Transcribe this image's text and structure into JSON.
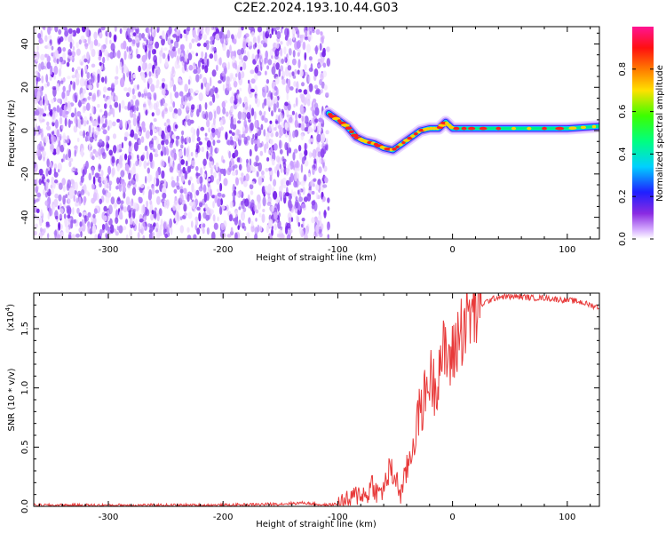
{
  "title": "C2E2.2024.193.10.44.G03",
  "colors": {
    "snr_line": "#e83a3a",
    "axis": "#000000",
    "background": "#ffffff"
  },
  "chart_data": [
    {
      "type": "heatmap",
      "name": "dynamic-spectrum",
      "xlabel": "Height of straight line (km)",
      "ylabel": "Frequency (Hz)",
      "xlim": [
        -365,
        128
      ],
      "ylim": [
        -50,
        48
      ],
      "xticks": [
        -300,
        -200,
        -100,
        0,
        100
      ],
      "yticks": [
        -40,
        -20,
        0,
        20,
        40
      ],
      "noise_region_x": [
        -365,
        -108
      ],
      "track": {
        "x": [
          -108,
          -100,
          -92,
          -84,
          -76,
          -68,
          -60,
          -52,
          -44,
          -36,
          -28,
          -20,
          -12,
          -6,
          0,
          20,
          60,
          100,
          128
        ],
        "y": [
          8,
          5,
          2,
          -3,
          -5,
          -6,
          -8,
          -9,
          -6,
          -3,
          0,
          1,
          1,
          4,
          1,
          1,
          1,
          1,
          2
        ]
      }
    },
    {
      "type": "colorbar",
      "name": "amplitude-colorbar",
      "label": "Normalized spectral amplitude",
      "range": [
        0,
        1
      ],
      "ticks": [
        "0.0",
        "0.2",
        "0.4",
        "0.6",
        "0.8"
      ]
    },
    {
      "type": "line",
      "name": "snr-line",
      "xlabel": "Height of straight line (km)",
      "ylabel": "SNR (10 * v/v)",
      "scale_label": "(x10",
      "scale_exp": "4",
      "scale_close": ")",
      "xlim": [
        -365,
        128
      ],
      "ylim": [
        0,
        1.8
      ],
      "xticks": [
        -300,
        -200,
        -100,
        0,
        100
      ],
      "yticks": [
        "0.0",
        "0.5",
        "1.0",
        "1.5"
      ],
      "series": [
        {
          "name": "SNR",
          "x": [
            -365,
            -300,
            -200,
            -150,
            -130,
            -110,
            -100,
            -90,
            -80,
            -75,
            -70,
            -65,
            -60,
            -55,
            -50,
            -45,
            -40,
            -35,
            -30,
            -25,
            -20,
            -15,
            -10,
            -5,
            0,
            5,
            10,
            15,
            20,
            25,
            30,
            35,
            40,
            50,
            60,
            70,
            80,
            90,
            100,
            110,
            120,
            128
          ],
          "y": [
            0.01,
            0.01,
            0.01,
            0.02,
            0.03,
            0.01,
            0.02,
            0.05,
            0.12,
            0.08,
            0.2,
            0.1,
            0.15,
            0.3,
            0.25,
            0.1,
            0.3,
            0.5,
            0.75,
            0.9,
            1.1,
            1.0,
            1.3,
            1.25,
            1.25,
            1.45,
            1.55,
            1.62,
            1.66,
            1.7,
            1.73,
            1.75,
            1.77,
            1.77,
            1.77,
            1.76,
            1.76,
            1.75,
            1.74,
            1.73,
            1.7,
            1.68
          ]
        }
      ]
    }
  ]
}
